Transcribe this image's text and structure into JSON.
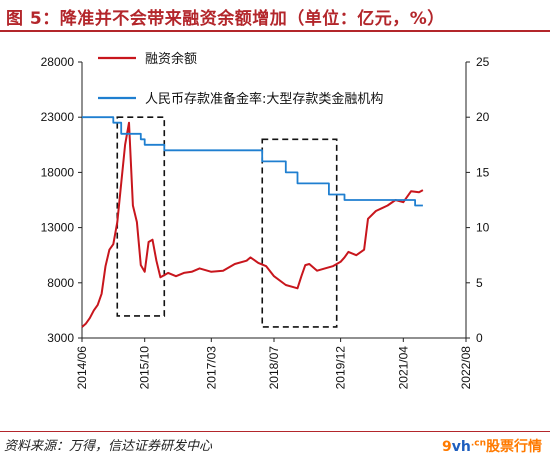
{
  "figure": {
    "title": "图 5：降准并不会带来融资余额增加（单位：亿元，%）",
    "source": "资料来源：万得，信达证券研发中心",
    "watermark_prefix": "9",
    "watermark_brand": "vh",
    "watermark_dot": ".cn",
    "watermark_text": "股票行情"
  },
  "chart_data": {
    "type": "line",
    "title": "",
    "xlabel": "",
    "ylabel": "",
    "x_ticks": [
      "2014/06",
      "2015/10",
      "2017/03",
      "2018/07",
      "2019/12",
      "2021/04",
      "2022/08"
    ],
    "xlim": [
      "2014/06",
      "2022/08"
    ],
    "y_left": {
      "lim": [
        3000,
        28000
      ],
      "ticks": [
        3000,
        8000,
        13000,
        18000,
        23000,
        28000
      ]
    },
    "y_right": {
      "lim": [
        0,
        25
      ],
      "ticks": [
        0,
        5,
        10,
        15,
        20,
        25
      ]
    },
    "legend_position": "top",
    "colors": {
      "margin": "#c8161d",
      "rrr": "#1f7fd0",
      "box": "#111111"
    },
    "series": [
      {
        "name": "融资余额",
        "axis": "left",
        "color": "#c8161d",
        "points": [
          [
            "2014/06",
            4000
          ],
          [
            "2014/07",
            4300
          ],
          [
            "2014/08",
            4800
          ],
          [
            "2014/09",
            5500
          ],
          [
            "2014/10",
            6000
          ],
          [
            "2014/11",
            7000
          ],
          [
            "2014/12",
            9500
          ],
          [
            "2015/01",
            11000
          ],
          [
            "2015/02",
            11500
          ],
          [
            "2015/03",
            13500
          ],
          [
            "2015/04",
            17000
          ],
          [
            "2015/05",
            20500
          ],
          [
            "2015/06",
            22500
          ],
          [
            "2015/07",
            15000
          ],
          [
            "2015/08",
            13500
          ],
          [
            "2015/09",
            9600
          ],
          [
            "2015/10",
            9000
          ],
          [
            "2015/11",
            11700
          ],
          [
            "2015/12",
            11900
          ],
          [
            "2016/01",
            10000
          ],
          [
            "2016/02",
            8500
          ],
          [
            "2016/03",
            8700
          ],
          [
            "2016/04",
            8900
          ],
          [
            "2016/06",
            8600
          ],
          [
            "2016/08",
            8900
          ],
          [
            "2016/10",
            9000
          ],
          [
            "2016/12",
            9300
          ],
          [
            "2017/03",
            9000
          ],
          [
            "2017/06",
            9100
          ],
          [
            "2017/09",
            9700
          ],
          [
            "2017/12",
            10000
          ],
          [
            "2018/01",
            10300
          ],
          [
            "2018/03",
            9800
          ],
          [
            "2018/05",
            9500
          ],
          [
            "2018/07",
            8600
          ],
          [
            "2018/10",
            7800
          ],
          [
            "2018/12",
            7600
          ],
          [
            "2019/01",
            7500
          ],
          [
            "2019/02",
            8600
          ],
          [
            "2019/03",
            9600
          ],
          [
            "2019/04",
            9700
          ],
          [
            "2019/06",
            9100
          ],
          [
            "2019/08",
            9300
          ],
          [
            "2019/10",
            9500
          ],
          [
            "2019/12",
            9900
          ],
          [
            "2020/01",
            10300
          ],
          [
            "2020/02",
            10800
          ],
          [
            "2020/04",
            10500
          ],
          [
            "2020/06",
            11000
          ],
          [
            "2020/07",
            13800
          ],
          [
            "2020/09",
            14500
          ],
          [
            "2020/12",
            15000
          ],
          [
            "2021/02",
            15500
          ],
          [
            "2021/04",
            15300
          ],
          [
            "2021/06",
            16300
          ],
          [
            "2021/08",
            16200
          ],
          [
            "2021/09",
            16400
          ]
        ]
      },
      {
        "name": "人民币存款准备金率:大型存款类金融机构",
        "axis": "right",
        "color": "#1f7fd0",
        "points": [
          [
            "2014/06",
            20.0
          ],
          [
            "2015/02",
            20.0
          ],
          [
            "2015/02",
            19.5
          ],
          [
            "2015/04",
            19.5
          ],
          [
            "2015/04",
            18.5
          ],
          [
            "2015/06",
            18.5
          ],
          [
            "2015/09",
            18.5
          ],
          [
            "2015/09",
            18.0
          ],
          [
            "2015/10",
            18.0
          ],
          [
            "2015/10",
            17.5
          ],
          [
            "2016/03",
            17.5
          ],
          [
            "2016/03",
            17.0
          ],
          [
            "2018/04",
            17.0
          ],
          [
            "2018/04",
            16.0
          ],
          [
            "2018/10",
            16.0
          ],
          [
            "2018/10",
            15.0
          ],
          [
            "2019/01",
            15.0
          ],
          [
            "2019/01",
            14.5
          ],
          [
            "2019/01",
            14.0
          ],
          [
            "2019/09",
            14.0
          ],
          [
            "2019/09",
            13.0
          ],
          [
            "2020/01",
            13.0
          ],
          [
            "2020/01",
            12.5
          ],
          [
            "2021/07",
            12.5
          ],
          [
            "2021/07",
            12.0
          ],
          [
            "2021/09",
            12.0
          ]
        ]
      }
    ],
    "annotation_boxes": [
      {
        "from": "2015/03",
        "to": "2016/03",
        "low": 5000,
        "high": 23000
      },
      {
        "from": "2018/04",
        "to": "2019/11",
        "low": 4000,
        "high": 21000
      }
    ]
  }
}
